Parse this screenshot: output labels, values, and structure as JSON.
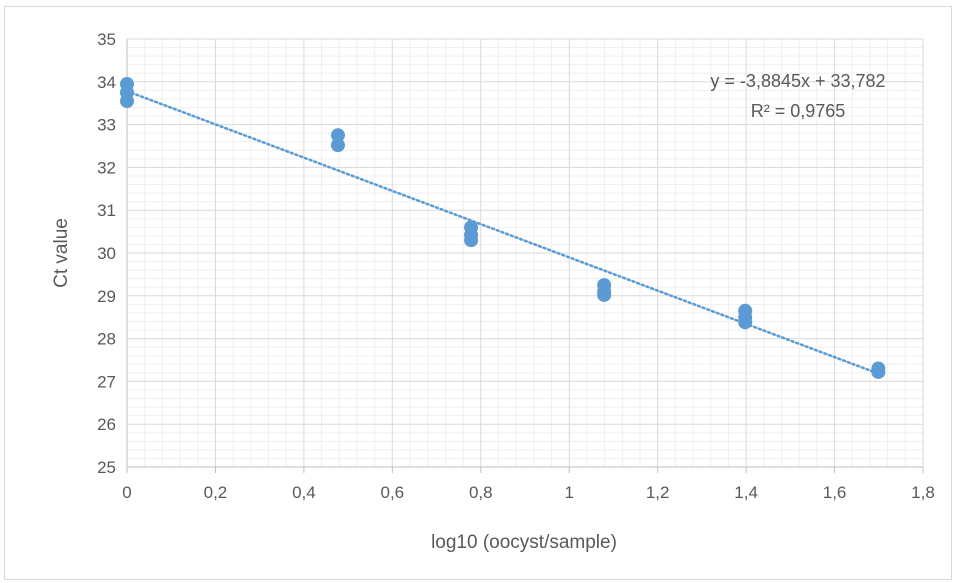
{
  "chart_data": {
    "type": "scatter",
    "xlabel": "log10 (oocyst/sample)",
    "ylabel": "Ct value",
    "xlim": [
      0,
      1.8
    ],
    "ylim": [
      25,
      35
    ],
    "x_ticks": [
      "0",
      "0,2",
      "0,4",
      "0,6",
      "0,8",
      "1",
      "1,2",
      "1,4",
      "1,6",
      "1,8"
    ],
    "y_ticks": [
      "25",
      "26",
      "27",
      "28",
      "29",
      "30",
      "31",
      "32",
      "33",
      "34",
      "35"
    ],
    "grid": true,
    "marker_color": "#5b9bd5",
    "trendline_color": "#5b9bd5",
    "points": [
      {
        "x": 0,
        "y": 33.95
      },
      {
        "x": 0,
        "y": 33.75
      },
      {
        "x": 0,
        "y": 33.55
      },
      {
        "x": 0.477,
        "y": 32.75
      },
      {
        "x": 0.477,
        "y": 32.52
      },
      {
        "x": 0.778,
        "y": 30.6
      },
      {
        "x": 0.778,
        "y": 30.42
      },
      {
        "x": 0.778,
        "y": 30.3
      },
      {
        "x": 1.079,
        "y": 29.25
      },
      {
        "x": 1.079,
        "y": 29.1
      },
      {
        "x": 1.079,
        "y": 29.02
      },
      {
        "x": 1.398,
        "y": 28.65
      },
      {
        "x": 1.398,
        "y": 28.5
      },
      {
        "x": 1.398,
        "y": 28.38
      },
      {
        "x": 1.699,
        "y": 27.3
      },
      {
        "x": 1.699,
        "y": 27.22
      }
    ],
    "trendline": {
      "slope": -3.8845,
      "intercept": 33.782,
      "x_range": [
        0,
        1.699
      ]
    },
    "equation_text": "y = -3,8845x + 33,782",
    "r2_text": "R² = 0,9765"
  }
}
